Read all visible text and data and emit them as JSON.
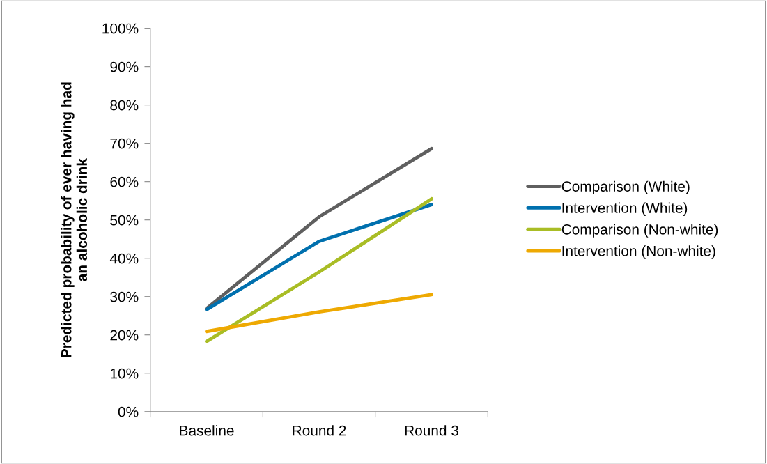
{
  "chart_data": {
    "type": "line",
    "ylabel": "Predicted probability of ever having had\nan alcoholic drink",
    "categories": [
      "Baseline",
      "Round 2",
      "Round 3"
    ],
    "series": [
      {
        "name": "Comparison (White)",
        "color": "#5f5f5f",
        "values": [
          26.9,
          50.8,
          68.6
        ]
      },
      {
        "name": "Intervention (White)",
        "color": "#0070ae",
        "values": [
          26.6,
          44.4,
          54.0
        ]
      },
      {
        "name": "Comparison (Non-white)",
        "color": "#a9bd25",
        "values": [
          18.3,
          36.4,
          55.5
        ]
      },
      {
        "name": "Intervention (Non-white)",
        "color": "#eea902",
        "values": [
          20.9,
          26.0,
          30.5
        ]
      }
    ],
    "ylim": [
      0,
      100
    ],
    "yticks": [
      {
        "value": 0,
        "label": "0%"
      },
      {
        "value": 10,
        "label": "10%"
      },
      {
        "value": 20,
        "label": "20%"
      },
      {
        "value": 30,
        "label": "30%"
      },
      {
        "value": 40,
        "label": "40%"
      },
      {
        "value": 50,
        "label": "50%"
      },
      {
        "value": 60,
        "label": "60%"
      },
      {
        "value": 70,
        "label": "70%"
      },
      {
        "value": 80,
        "label": "80%"
      },
      {
        "value": 90,
        "label": "90%"
      },
      {
        "value": 100,
        "label": "100%"
      }
    ],
    "grid": false,
    "legend": "right",
    "marker": "none",
    "line_style": "solid"
  }
}
